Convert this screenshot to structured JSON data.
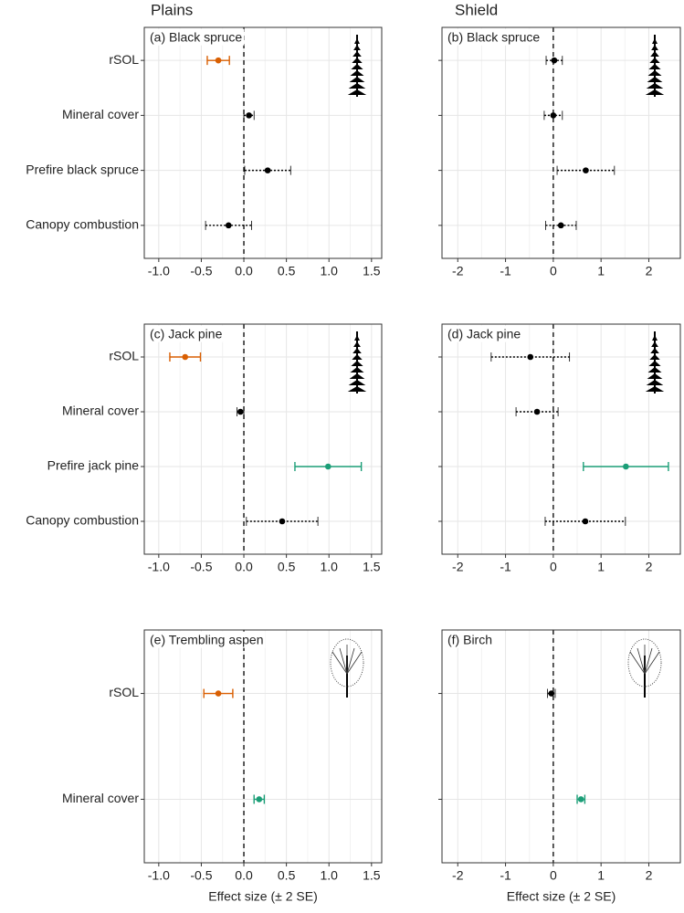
{
  "column_headers": [
    "Plains",
    "Shield"
  ],
  "chart_data": [
    {
      "type": "forest",
      "title": "(a) Black spruce",
      "categories": [
        "rSOL",
        "Mineral cover",
        "Prefire black spruce",
        "Canopy combustion"
      ],
      "values": [
        -0.3,
        0.06,
        0.28,
        -0.18
      ],
      "errors": [
        0.13,
        0.06,
        0.27,
        0.27
      ],
      "colors": [
        "#d95f02",
        "#000000",
        "#000000",
        "#000000"
      ],
      "xlim": [
        -1.17,
        1.62
      ],
      "xticks": [
        {
          "value": -1.0,
          "label": "-1.0"
        },
        -0.5,
        {
          "value": 0.0,
          "label": "0.0"
        },
        0.5,
        {
          "value": 1.0,
          "label": "1.0"
        },
        1.5
      ],
      "grid": true
    },
    {
      "type": "forest",
      "title": "(b) Black spruce",
      "values": [
        0.02,
        0.0,
        0.68,
        0.16
      ],
      "errors": [
        0.17,
        0.19,
        0.6,
        0.32
      ],
      "colors": [
        "#000000",
        "#000000",
        "#000000",
        "#000000"
      ],
      "xlim": [
        -2.33,
        2.66
      ],
      "xticks": [
        -2,
        -1,
        0,
        1,
        2
      ],
      "grid": true
    },
    {
      "type": "forest",
      "title": "(c) Jack pine",
      "categories": [
        "rSOL",
        "Mineral cover",
        "Prefire jack pine",
        "Canopy combustion"
      ],
      "values": [
        -0.69,
        -0.04,
        0.99,
        0.45
      ],
      "errors": [
        0.18,
        0.04,
        0.39,
        0.42
      ],
      "colors": [
        "#d95f02",
        "#000000",
        "#1b9e77",
        "#000000"
      ],
      "xlim": [
        -1.17,
        1.62
      ],
      "xticks": [
        {
          "value": -1.0,
          "label": "-1.0"
        },
        -0.5,
        {
          "value": 0.0,
          "label": "0.0"
        },
        0.5,
        {
          "value": 1.0,
          "label": "1.0"
        },
        1.5
      ],
      "grid": true
    },
    {
      "type": "forest",
      "title": "(d) Jack pine",
      "values": [
        -0.48,
        -0.34,
        1.52,
        0.67
      ],
      "errors": [
        0.82,
        0.44,
        0.89,
        0.84
      ],
      "colors": [
        "#000000",
        "#000000",
        "#1b9e77",
        "#000000"
      ],
      "xlim": [
        -2.33,
        2.66
      ],
      "xticks": [
        -2,
        -1,
        0,
        1,
        2
      ],
      "grid": true
    },
    {
      "type": "forest",
      "title": "(e) Trembling aspen",
      "categories": [
        "rSOL",
        "Mineral cover"
      ],
      "values": [
        -0.3,
        0.18
      ],
      "errors": [
        0.17,
        0.06
      ],
      "colors": [
        "#d95f02",
        "#1b9e77"
      ],
      "xlim": [
        -1.17,
        1.62
      ],
      "xticks": [
        {
          "value": -1.0,
          "label": "-1.0"
        },
        -0.5,
        {
          "value": 0.0,
          "label": "0.0"
        },
        0.5,
        {
          "value": 1.0,
          "label": "1.0"
        },
        1.5
      ],
      "xlabel": "Effect size (± 2 SE)",
      "grid": true
    },
    {
      "type": "forest",
      "title": "(f) Birch",
      "values": [
        -0.04,
        0.58
      ],
      "errors": [
        0.08,
        0.08
      ],
      "colors": [
        "#000000",
        "#1b9e77"
      ],
      "xlim": [
        -2.33,
        2.66
      ],
      "xticks": [
        -2,
        -1,
        0,
        1,
        2
      ],
      "xlabel": "Effect size (± 2 SE)",
      "grid": true
    }
  ]
}
